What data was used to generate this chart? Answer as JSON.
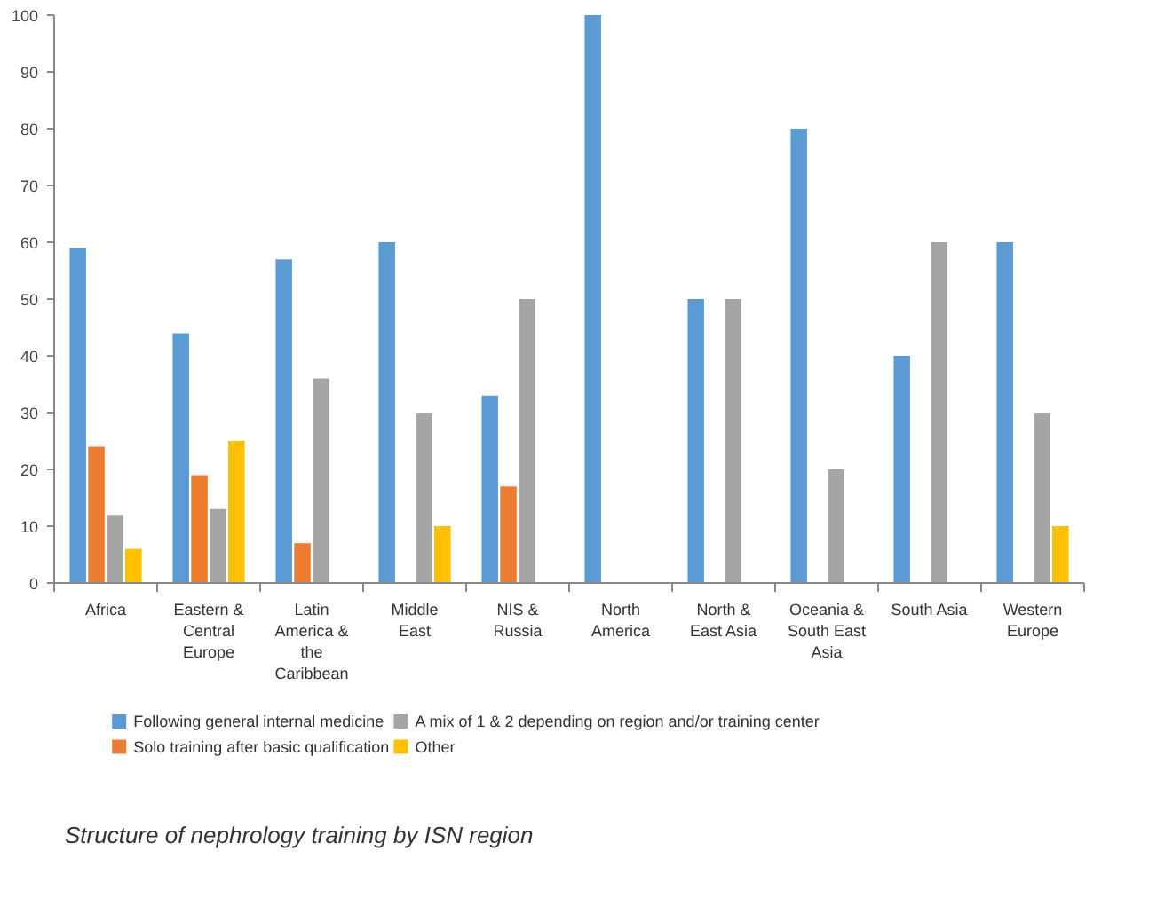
{
  "chart_data": {
    "type": "bar",
    "title": "Structure of nephrology training by ISN region",
    "categories": [
      "Africa",
      "Eastern & Central Europe",
      "Latin America & the Caribbean",
      "Middle East",
      "NIS & Russia",
      "North America",
      "North & East Asia",
      "Oceania & South East Asia",
      "South Asia",
      "Western Europe"
    ],
    "series": [
      {
        "name": "Following general internal medicine",
        "color": "#5b9bd5",
        "values": [
          59,
          44,
          57,
          60,
          33,
          100,
          50,
          80,
          40,
          60
        ]
      },
      {
        "name": "Solo training after basic qualification",
        "color": "#ed7d31",
        "values": [
          24,
          19,
          7,
          null,
          17,
          null,
          null,
          null,
          null,
          null
        ]
      },
      {
        "name": "A mix of 1 & 2 depending on region and/or training center",
        "color": "#a5a5a5",
        "values": [
          12,
          13,
          36,
          30,
          50,
          null,
          50,
          20,
          60,
          30
        ]
      },
      {
        "name": "Other",
        "color": "#ffc000",
        "values": [
          6,
          25,
          null,
          10,
          null,
          null,
          null,
          null,
          null,
          10
        ]
      }
    ],
    "ylim": [
      0,
      100
    ],
    "yticks": [
      0,
      10,
      20,
      30,
      40,
      50,
      60,
      70,
      80,
      90,
      100
    ],
    "legend": "bottom"
  }
}
